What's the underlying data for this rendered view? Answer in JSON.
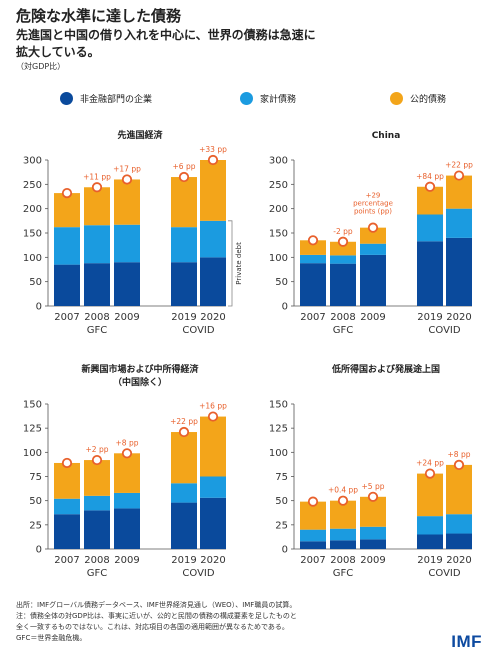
{
  "header": {
    "title": "危険な水準に達した債務",
    "subtitle_line1": "先進国と中国の借り入れを中心に、世界の債務は急速に",
    "subtitle_line2": "拡大している。",
    "unit": "（対GDP比）"
  },
  "legend": [
    {
      "name": "非金融部門の企業",
      "color": "#0a4a9c"
    },
    {
      "name": "家計債務",
      "color": "#1b9be0"
    },
    {
      "name": "公的債務",
      "color": "#f3a51a"
    }
  ],
  "colors": {
    "corporate": "#0a4a9c",
    "household": "#1b9be0",
    "public": "#f3a51a",
    "marker": "#e8602c",
    "axis": "#555555"
  },
  "chart_data": [
    {
      "type": "bar",
      "title": "先進国経済",
      "categories": [
        "2007",
        "2008",
        "2009",
        "2019",
        "2020"
      ],
      "group_labels": [
        "GFC",
        "COVID"
      ],
      "ylim": [
        0,
        300
      ],
      "yticks": [
        0,
        50,
        100,
        150,
        200,
        250,
        300
      ],
      "series": [
        {
          "name": "非金融部門の企業",
          "values": [
            85,
            88,
            90,
            90,
            100
          ]
        },
        {
          "name": "家計債務",
          "values": [
            77,
            78,
            77,
            72,
            75
          ]
        },
        {
          "name": "公的債務",
          "values": [
            70,
            78,
            93,
            103,
            125
          ]
        }
      ],
      "annotations": [
        "",
        "+11 pp",
        "+17 pp",
        "+6 pp",
        "+33 pp"
      ],
      "side_label": "Private debt"
    },
    {
      "type": "bar",
      "title": "China",
      "categories": [
        "2007",
        "2008",
        "2009",
        "2019",
        "2020"
      ],
      "group_labels": [
        "GFC",
        "COVID"
      ],
      "ylim": [
        0,
        300
      ],
      "yticks": [
        0,
        50,
        100,
        150,
        200,
        250,
        300
      ],
      "series": [
        {
          "name": "非金融部門の企業",
          "values": [
            88,
            87,
            105,
            133,
            140
          ]
        },
        {
          "name": "家計債務",
          "values": [
            17,
            17,
            23,
            55,
            60
          ]
        },
        {
          "name": "公的債務",
          "values": [
            30,
            28,
            33,
            57,
            68
          ]
        }
      ],
      "annotations": [
        "",
        "-2 pp",
        "+29 percentage points (pp)",
        "+84 pp",
        "+22 pp"
      ]
    },
    {
      "type": "bar",
      "title": "新興国市場および中所得経済",
      "title_line2": "（中国除く）",
      "categories": [
        "2007",
        "2008",
        "2009",
        "2019",
        "2020"
      ],
      "group_labels": [
        "GFC",
        "COVID"
      ],
      "ylim": [
        0,
        150
      ],
      "yticks": [
        0,
        25,
        50,
        75,
        100,
        125,
        150
      ],
      "series": [
        {
          "name": "非金融部門の企業",
          "values": [
            36,
            40,
            42,
            48,
            53
          ]
        },
        {
          "name": "家計債務",
          "values": [
            16,
            15,
            16,
            20,
            22
          ]
        },
        {
          "name": "公的債務",
          "values": [
            37,
            37,
            41,
            53,
            62
          ]
        }
      ],
      "annotations": [
        "",
        "+2 pp",
        "+8 pp",
        "+22 pp",
        "+16 pp"
      ]
    },
    {
      "type": "bar",
      "title": "低所得国および発展途上国",
      "categories": [
        "2007",
        "2008",
        "2009",
        "2019",
        "2020"
      ],
      "group_labels": [
        "GFC",
        "COVID"
      ],
      "ylim": [
        0,
        150
      ],
      "yticks": [
        0,
        25,
        50,
        75,
        100,
        125,
        150
      ],
      "series": [
        {
          "name": "非金融部門の企業",
          "values": [
            8,
            9,
            10,
            15,
            16
          ]
        },
        {
          "name": "家計債務",
          "values": [
            12,
            12,
            13,
            19,
            20
          ]
        },
        {
          "name": "公的債務",
          "values": [
            29,
            29,
            31,
            44,
            51
          ]
        }
      ],
      "annotations": [
        "",
        "+0.4 pp",
        "+5 pp",
        "+24 pp",
        "+8 pp"
      ]
    }
  ],
  "footer": {
    "line1": "出所：IMFグローバル債務データベース、IMF世界経済見通し（WEO）、IMF職員の試算。",
    "line2": "注：債務全体の対GDP比は、事実に近いが、公的と民間の債務の構成要素を足したものと",
    "line3": "全く一致するものではない。これは、対応項目の各国の適用範囲が異なるためである。",
    "line4": "GFC＝世界金融危機。"
  },
  "logo": "IMF"
}
